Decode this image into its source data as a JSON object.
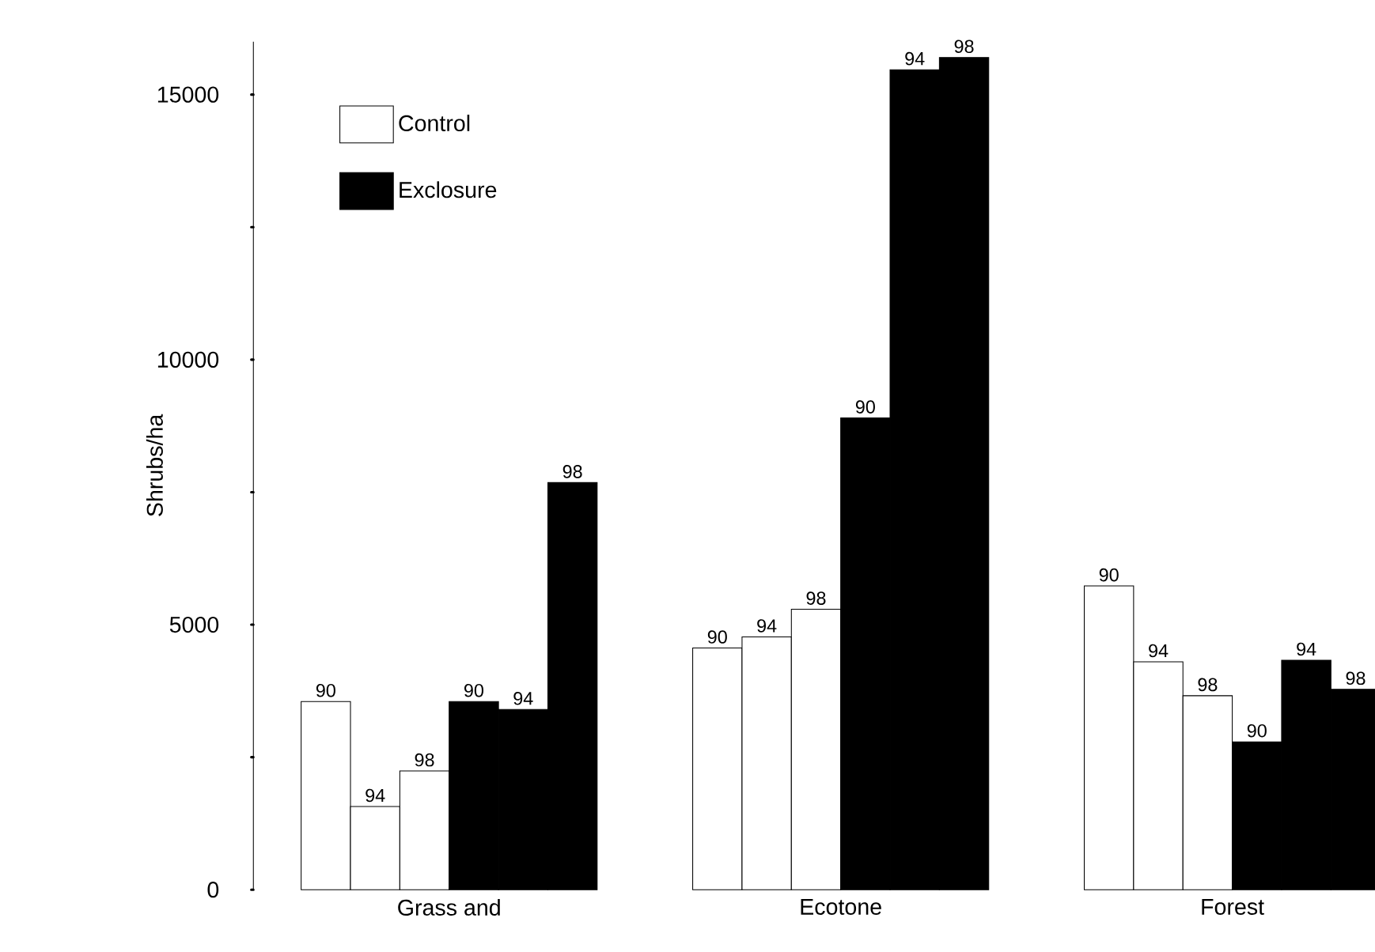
{
  "chart_data": {
    "type": "bar",
    "ylabel": "Shrubs/ha",
    "categories": [
      "Grass and",
      "Ecotone",
      "Forest"
    ],
    "ylim": [
      0,
      16000
    ],
    "yticks": [
      0,
      {
        "value": 2500,
        "label": null
      },
      5000,
      {
        "value": 7500,
        "label": null
      },
      10000,
      {
        "value": 12500,
        "label": null
      },
      15000
    ],
    "legend": "top left",
    "series": [
      {
        "name": "Control",
        "color": "#ffffff",
        "values": [
          3550,
          4560,
          5730
        ]
      },
      {
        "color": "#ffffff",
        "values": [
          1570,
          4770,
          4300
        ]
      },
      {
        "color": "#ffffff",
        "values": [
          2240,
          5290,
          3660
        ]
      },
      {
        "name": "Exclosure",
        "color": "#000000",
        "values": [
          3550,
          8900,
          2790
        ]
      },
      {
        "color": "#000000",
        "values": [
          3400,
          15470,
          4330
        ]
      },
      {
        "color": "#000000",
        "values": [
          7680,
          15700,
          3780
        ]
      }
    ],
    "annotations": [
      "90",
      "90",
      "90",
      "94",
      "94",
      "94",
      "98",
      "98",
      "98",
      "90",
      "90",
      "90",
      "94",
      "94",
      "94",
      "98",
      "98",
      "98"
    ]
  }
}
